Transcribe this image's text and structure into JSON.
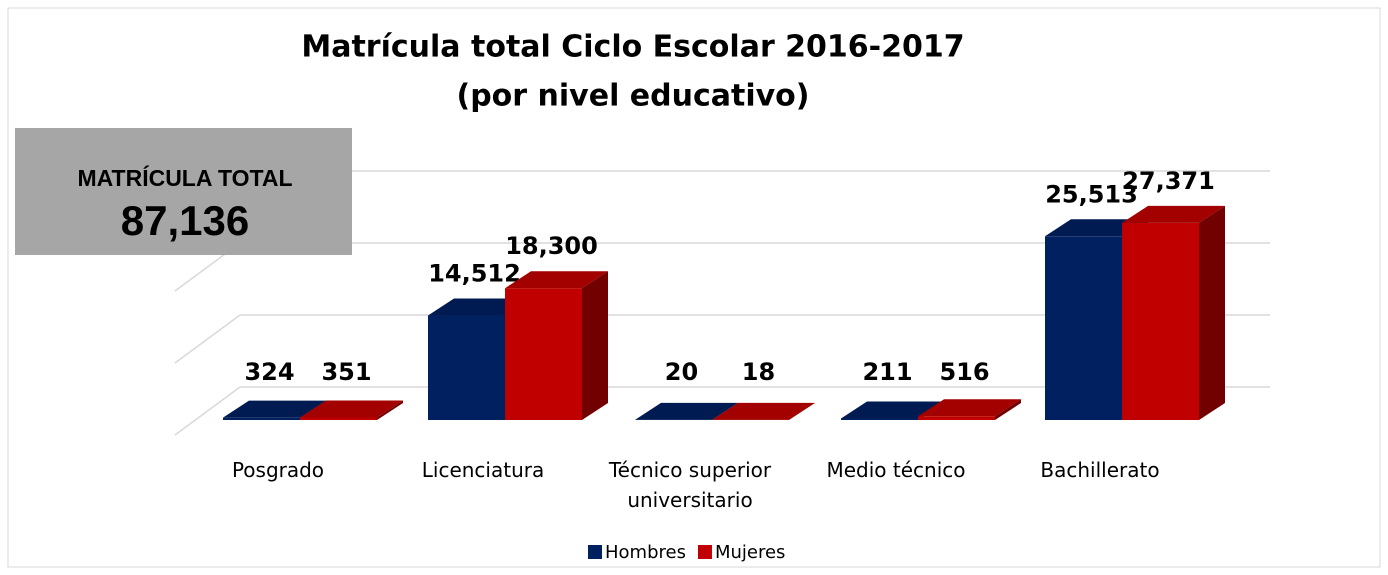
{
  "chart_data": {
    "type": "bar3d",
    "title": "Matrícula total Ciclo Escolar 2016-2017",
    "subtitle": "(por nivel educativo)",
    "annotation": {
      "heading": "MATRÍCULA TOTAL",
      "text": "87,136"
    },
    "categories": [
      "Posgrado",
      "Licenciatura",
      "Técnico superior universitario",
      "Medio técnico",
      "Bachillerato"
    ],
    "series": [
      {
        "name": "Hombres",
        "color": "#002060",
        "values": [
          324,
          14512,
          20,
          211,
          25513
        ],
        "value_labels": [
          "324",
          "14,512",
          "20",
          "211",
          "25,513"
        ]
      },
      {
        "name": "Mujeres",
        "color": "#c00000",
        "values": [
          351,
          18300,
          18,
          516,
          27371
        ],
        "value_labels": [
          "351",
          "18,300",
          "18",
          "516",
          "27,371"
        ]
      }
    ],
    "ylim": [
      0,
      30000
    ],
    "yticks": [
      0,
      10000,
      20000,
      30000
    ],
    "grid": true,
    "legend": "bottom"
  }
}
